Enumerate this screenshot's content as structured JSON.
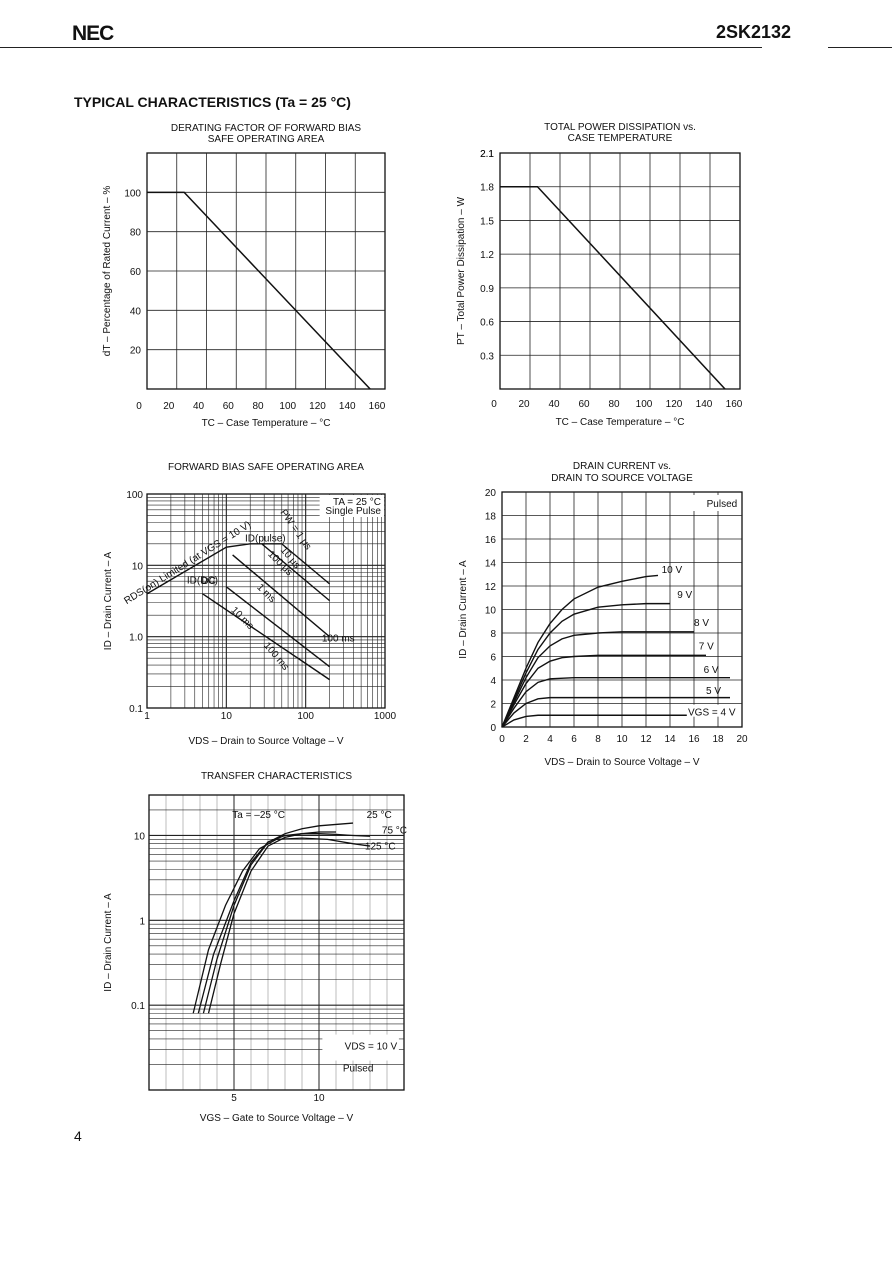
{
  "header": {
    "logo": "NEC",
    "part_number": "2SK2132"
  },
  "section_title": "TYPICAL CHARACTERISTICS (Ta = 25 °C)",
  "page_number": "4",
  "chart_data": [
    {
      "type": "line",
      "title_lines": [
        "DERATING FACTOR OF FORWARD BIAS",
        "SAFE OPERATING AREA"
      ],
      "xlabel": "TC – Case Temperature – °C",
      "ylabel": "dT – Percentage of Rated Current – %",
      "xlim": [
        0,
        160
      ],
      "ylim": [
        0,
        120
      ],
      "xticks": [
        "0",
        "20",
        "40",
        "60",
        "80",
        "100",
        "120",
        "140",
        "160"
      ],
      "yticks": [
        "20",
        "40",
        "60",
        "80",
        "100"
      ],
      "grid": true,
      "series": [
        {
          "x": [
            0,
            25,
            150
          ],
          "y": [
            100,
            100,
            0
          ]
        }
      ]
    },
    {
      "type": "line",
      "title_lines": [
        "TOTAL POWER DISSIPATION vs.",
        "CASE TEMPERATURE"
      ],
      "xlabel": "TC – Case Temperature – °C",
      "ylabel": "PT – Total Power Dissipation – W",
      "xlim": [
        0,
        160
      ],
      "ylim": [
        0,
        2.1
      ],
      "xticks": [
        "0",
        "20",
        "40",
        "60",
        "80",
        "100",
        "120",
        "140",
        "160"
      ],
      "yticks": [
        "0.3",
        "0.6",
        "0.9",
        "1.2",
        "1.5",
        "1.8",
        "2.1"
      ],
      "grid": true,
      "series": [
        {
          "x": [
            0,
            25,
            150
          ],
          "y": [
            1.8,
            1.8,
            0
          ]
        }
      ]
    },
    {
      "type": "line",
      "title_lines": [
        "FORWARD BIAS SAFE OPERATING AREA"
      ],
      "xlabel": "VDS – Drain to Source Voltage – V",
      "ylabel": "ID – Drain Current – A",
      "xscale": "log",
      "yscale": "log",
      "xlim": [
        1,
        1000
      ],
      "ylim": [
        0.1,
        100
      ],
      "xticks": [
        "1",
        "10",
        "100",
        "1000"
      ],
      "yticks": [
        "0.1",
        "1.0",
        "10",
        "100"
      ],
      "grid": true,
      "annotations": [
        "TA = 25 °C",
        "Single Pulse",
        "PW = 1 μs",
        "10 μs",
        "100 μs",
        "1 ms",
        "10 ms",
        "100 ms",
        "DC",
        "ID(pulse)",
        "ID(DC)",
        "RDS(on) Limited (at VGS = 10 V)"
      ],
      "series": [
        {
          "label": "RDS(on) limit",
          "x": [
            1,
            10,
            20
          ],
          "y": [
            4,
            18,
            20
          ]
        },
        {
          "label": "ID(pulse)",
          "x": [
            20,
            50
          ],
          "y": [
            20,
            20
          ]
        },
        {
          "label": "10 μs",
          "x": [
            50,
            200
          ],
          "y": [
            20,
            5.5
          ]
        },
        {
          "label": "100 μs",
          "x": [
            28,
            200
          ],
          "y": [
            20,
            3.2
          ]
        },
        {
          "label": "1 ms",
          "x": [
            12,
            200
          ],
          "y": [
            14,
            1.0
          ]
        },
        {
          "label": "10 ms",
          "x": [
            10,
            200
          ],
          "y": [
            5,
            0.38
          ]
        },
        {
          "label": "DC",
          "x": [
            5,
            200
          ],
          "y": [
            4,
            0.25
          ]
        },
        {
          "label": "100 ms limit",
          "x": [
            200
          ],
          "y": [
            0.85
          ]
        }
      ]
    },
    {
      "type": "line",
      "title_lines": [
        "DRAIN CURRENT vs.",
        "DRAIN TO SOURCE VOLTAGE"
      ],
      "xlabel": "VDS – Drain to Source Voltage – V",
      "ylabel": "ID – Drain Current – A",
      "xlim": [
        0,
        20
      ],
      "ylim": [
        0,
        20
      ],
      "xticks": [
        "0",
        "2",
        "4",
        "6",
        "8",
        "10",
        "12",
        "14",
        "16",
        "18",
        "20"
      ],
      "yticks": [
        "2",
        "4",
        "6",
        "8",
        "10",
        "12",
        "14",
        "16",
        "18",
        "20"
      ],
      "grid": true,
      "annotations": [
        "Pulsed"
      ],
      "series": [
        {
          "name": "10 V",
          "x": [
            0,
            1,
            2,
            3,
            4,
            5,
            6,
            8,
            10,
            12,
            13
          ],
          "y": [
            0,
            2.5,
            5,
            7.2,
            8.8,
            10,
            10.9,
            11.9,
            12.4,
            12.8,
            12.9
          ]
        },
        {
          "name": "9 V",
          "x": [
            0,
            1,
            2,
            3,
            4,
            5,
            6,
            8,
            10,
            12,
            14
          ],
          "y": [
            0,
            2.3,
            4.6,
            6.6,
            8,
            9,
            9.6,
            10.2,
            10.4,
            10.5,
            10.5
          ]
        },
        {
          "name": "8 V",
          "x": [
            0,
            1,
            2,
            3,
            4,
            5,
            6,
            8,
            10,
            12,
            16
          ],
          "y": [
            0,
            2.1,
            4.2,
            5.9,
            6.9,
            7.5,
            7.8,
            8,
            8.1,
            8.1,
            8.1
          ]
        },
        {
          "name": "7 V",
          "x": [
            0,
            1,
            2,
            3,
            4,
            5,
            6,
            8,
            12,
            17
          ],
          "y": [
            0,
            1.9,
            3.7,
            5,
            5.6,
            5.9,
            6,
            6.1,
            6.1,
            6.1
          ]
        },
        {
          "name": "6 V",
          "x": [
            0,
            1,
            2,
            3,
            4,
            6,
            10,
            19
          ],
          "y": [
            0,
            1.6,
            3,
            3.8,
            4.1,
            4.2,
            4.2,
            4.2
          ]
        },
        {
          "name": "5 V",
          "x": [
            0,
            1,
            2,
            3,
            4,
            8,
            19
          ],
          "y": [
            0,
            1.2,
            2,
            2.4,
            2.5,
            2.5,
            2.5
          ]
        },
        {
          "name": "VGS = 4 V",
          "x": [
            0,
            1,
            2,
            3,
            6,
            19
          ],
          "y": [
            0,
            0.6,
            0.9,
            1,
            1,
            1
          ]
        }
      ]
    },
    {
      "type": "line",
      "title_lines": [
        "TRANSFER CHARACTERISTICS"
      ],
      "xlabel": "VGS – Gate to Source Voltage – V",
      "ylabel": "ID – Drain Current – A",
      "yscale": "log",
      "xlim": [
        0,
        15
      ],
      "ylim": [
        0.01,
        30
      ],
      "xticks": [
        "5",
        "10"
      ],
      "yticks": [
        "0.1",
        "1",
        "10"
      ],
      "grid": true,
      "annotations": [
        "VDS = 10 V",
        "Pulsed"
      ],
      "series": [
        {
          "name": "Ta = –25 °C",
          "x": [
            3.5,
            4.2,
            5,
            6,
            7,
            8,
            9,
            10,
            11
          ],
          "y": [
            0.08,
            0.3,
            1.2,
            3.8,
            7.5,
            9.5,
            10.5,
            11,
            11
          ]
        },
        {
          "name": "25 °C",
          "x": [
            3.2,
            4,
            5,
            6,
            7,
            8,
            9,
            10,
            11,
            12
          ],
          "y": [
            0.08,
            0.35,
            1.5,
            4.5,
            8.3,
            10.5,
            12,
            13,
            13.5,
            14
          ]
        },
        {
          "name": "75 °C",
          "x": [
            2.9,
            3.8,
            5,
            6,
            7,
            8,
            9,
            10,
            11,
            12,
            13
          ],
          "y": [
            0.08,
            0.4,
            1.7,
            4.8,
            8.4,
            10,
            10.5,
            10.5,
            10.3,
            10,
            9.8
          ]
        },
        {
          "name": "125 °C",
          "x": [
            2.6,
            3.5,
            4.5,
            5.5,
            6.5,
            7.5,
            9,
            10.5,
            12,
            13
          ],
          "y": [
            0.08,
            0.45,
            1.5,
            3.8,
            7,
            9,
            9.3,
            9,
            8,
            7.5
          ]
        }
      ]
    }
  ]
}
